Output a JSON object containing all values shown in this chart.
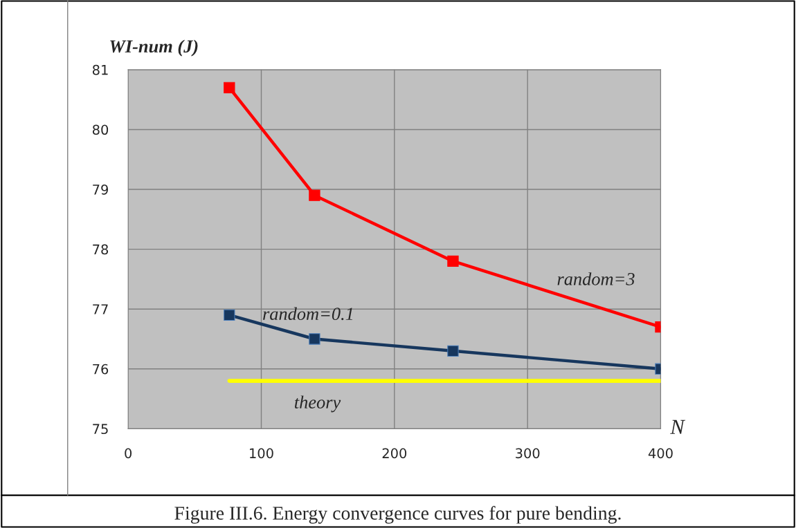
{
  "chart_data": {
    "type": "line",
    "ylabel": "WI-num (J)",
    "xlabel": "N",
    "xlim": [
      0,
      400
    ],
    "xticks": [
      0,
      100,
      200,
      300,
      400
    ],
    "ylim": [
      75,
      81
    ],
    "yticks": [
      75,
      76,
      77,
      78,
      79,
      80,
      81
    ],
    "grid": true,
    "legend": false,
    "marker": "square",
    "line_style": "solid",
    "annotations": [
      "Figure III.6. Energy convergence curves for pure bending."
    ],
    "series": [
      {
        "name": "random=3",
        "color": "#ff0000",
        "x": [
          76,
          140,
          244,
          400
        ],
        "values": [
          80.7,
          78.9,
          77.8,
          76.7
        ]
      },
      {
        "name": "random=0.1",
        "color": "#17375e",
        "x": [
          76,
          140,
          244,
          400
        ],
        "values": [
          76.9,
          76.5,
          76.3,
          76.0
        ]
      },
      {
        "name": "theory",
        "color": "#ffff00",
        "type": "line",
        "marker": "none",
        "x": [
          76,
          400
        ],
        "values": [
          75.8,
          75.8
        ]
      }
    ]
  }
}
